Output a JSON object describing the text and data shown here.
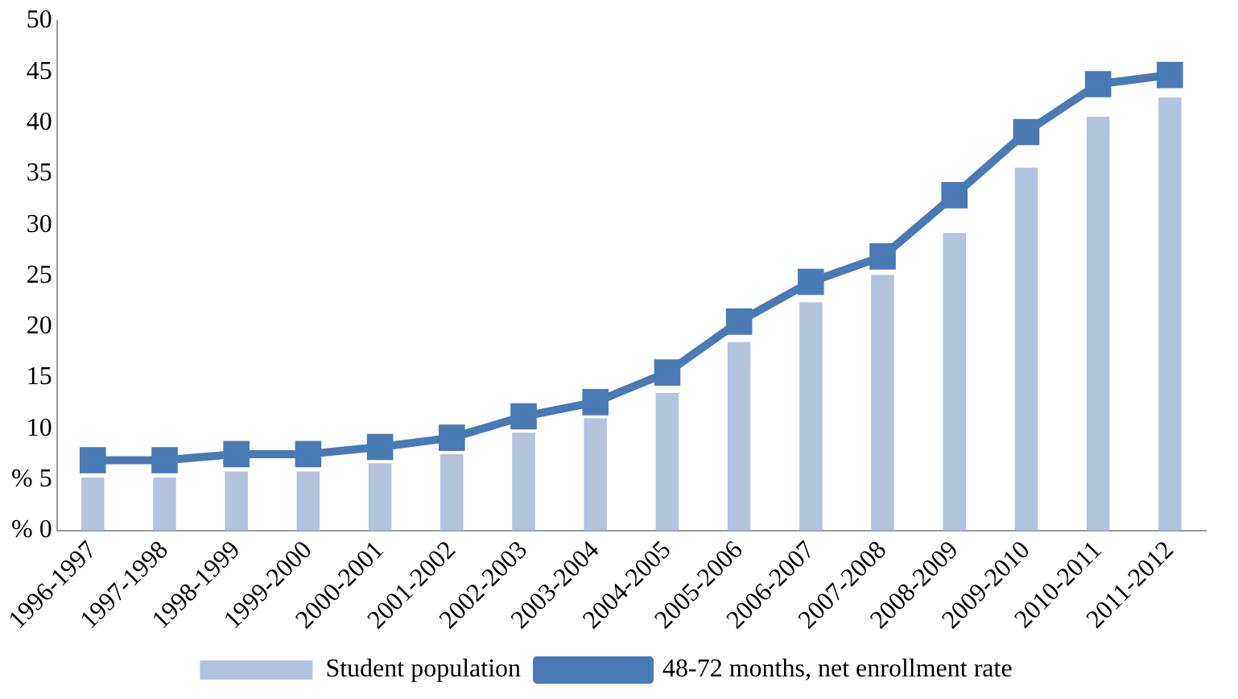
{
  "chart_data": {
    "type": "bar",
    "categories": [
      "1996-1997",
      "1997-1998",
      "1998-1999",
      "1999-2000",
      "2000-2001",
      "2001-2002",
      "2002-2003",
      "2003-2004",
      "2004-2005",
      "2005-2006",
      "2006-2007",
      "2007-2008",
      "2008-2009",
      "2009-2010",
      "2010-2011",
      "2011-2012"
    ],
    "series": [
      {
        "name": "Student population",
        "color": "#b4c3de",
        "values": [
          5.2,
          5.2,
          5.8,
          5.8,
          6.6,
          7.5,
          9.6,
          11,
          13.5,
          18.5,
          22.4,
          25.1,
          29.2,
          35.6,
          40.6,
          42.5
        ]
      },
      {
        "name": "48-72 months, net enrollment rate",
        "type": "line",
        "color": "#4a7ab5",
        "values": [
          6.9,
          6.9,
          7.5,
          7.5,
          8.2,
          9.1,
          11.2,
          12.6,
          15.5,
          20.5,
          24.4,
          26.9,
          32.9,
          39.1,
          43.8,
          44.7
        ]
      }
    ],
    "ylim": [
      0,
      50
    ],
    "yticks": [
      {
        "value": 0,
        "label": "% 0"
      },
      {
        "value": 5,
        "label": "% 5"
      },
      10,
      15,
      20,
      25,
      30,
      35,
      40,
      45,
      50
    ],
    "grid": false,
    "legend": "bottom",
    "marker": "square",
    "line_style": "solid"
  }
}
